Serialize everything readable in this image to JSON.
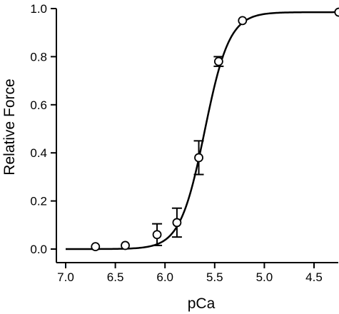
{
  "chart_data": {
    "type": "scatter",
    "title": "",
    "xlabel": "pCa",
    "ylabel": "Relative Force",
    "x_axis": {
      "range": [
        7.0,
        4.2
      ],
      "reversed": true,
      "ticks": [
        7.0,
        6.5,
        6.0,
        5.5,
        5.0,
        4.5
      ],
      "tick_labels": [
        "7.0",
        "6.5",
        "6.0",
        "5.5",
        "5.0",
        "4.5"
      ]
    },
    "y_axis": {
      "range": [
        0.0,
        1.0
      ],
      "ticks": [
        0.0,
        0.2,
        0.4,
        0.6,
        0.8,
        1.0
      ],
      "tick_labels": [
        "0.0",
        "0.2",
        "0.4",
        "0.6",
        "0.8",
        "1.0"
      ]
    },
    "grid": false,
    "legend": "none",
    "series": [
      {
        "type": "scatter",
        "marker": "open-circle",
        "x": [
          6.7,
          6.4,
          6.08,
          5.88,
          5.66,
          5.46,
          5.22,
          4.25
        ],
        "y": [
          0.01,
          0.015,
          0.06,
          0.11,
          0.38,
          0.78,
          0.95,
          0.985
        ],
        "error": [
          0,
          0,
          0.045,
          0.06,
          0.07,
          0.02,
          0,
          0
        ]
      },
      {
        "type": "line",
        "fit": "Hill",
        "fmax": 0.985,
        "pca50": 5.6,
        "hill_n": 3.5,
        "x_range": [
          7.0,
          4.2
        ]
      }
    ],
    "colors": {
      "line": "#000000",
      "marker_fill": "#ffffff",
      "marker_stroke": "#000000"
    }
  }
}
